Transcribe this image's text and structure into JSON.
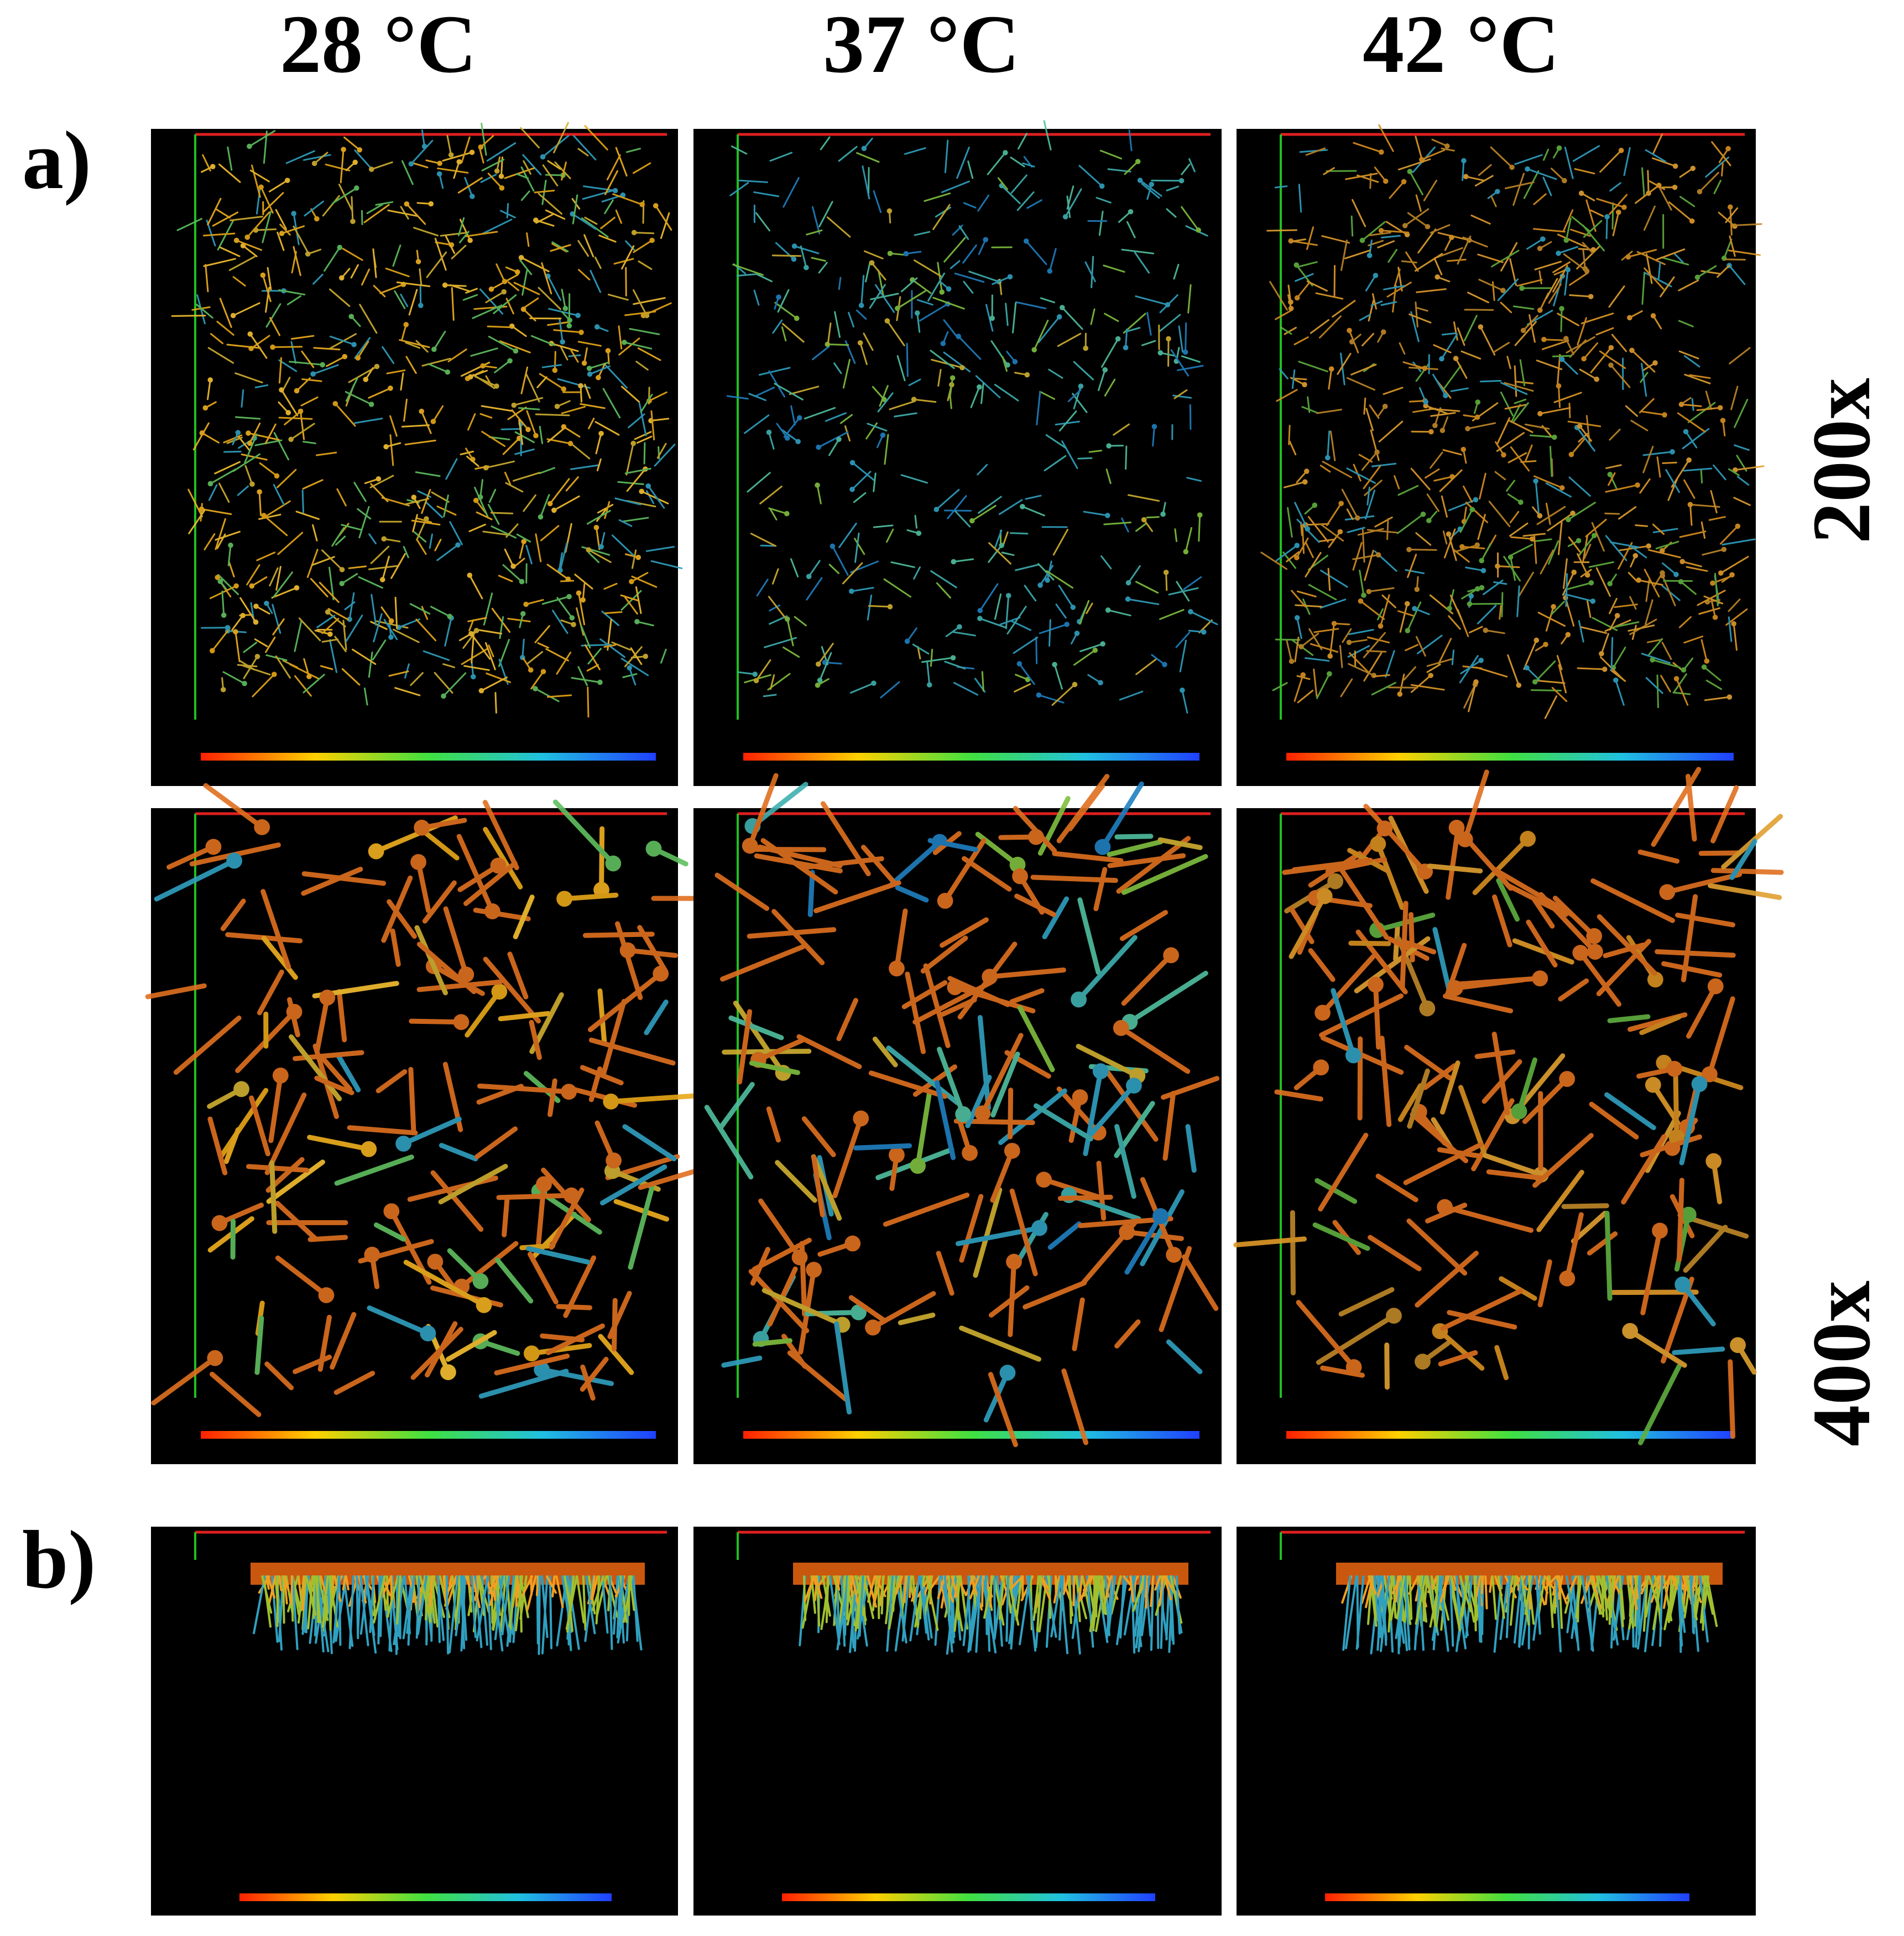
{
  "columns": [
    "28 °C",
    "37 °C",
    "42 °C"
  ],
  "rows": {
    "a": "a)",
    "b": "b)"
  },
  "magnifications": [
    "200x",
    "400x"
  ]
}
